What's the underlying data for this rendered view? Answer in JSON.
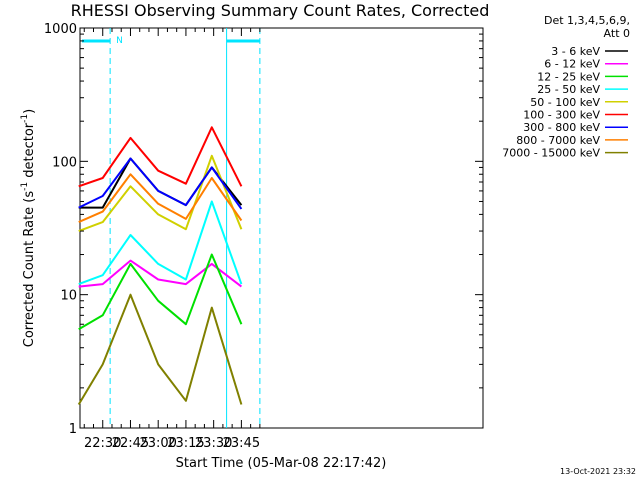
{
  "chart_data": {
    "type": "line",
    "title": "RHESSI Observing Summary Count Rates, Corrected",
    "xlabel": "Start Time (05-Mar-08 22:17:42)",
    "ylabel": "Corrected Count Rate (s⁻¹ detector⁻¹)",
    "ylabel_parts": {
      "main": "Corrected Count Rate (s",
      "sup1": "-1",
      "mid": " detector",
      "sup2": "-1",
      "end": ")"
    },
    "yscale": "log",
    "ylim": [
      1,
      1000
    ],
    "xlim_minutes_after_start": [
      0,
      218
    ],
    "ytick_labels": [
      "1",
      "10",
      "100",
      "1000"
    ],
    "xtick_labels": [
      "22:30",
      "22:45",
      "23:00",
      "23:15",
      "23:30",
      "23:45"
    ],
    "legend_header": [
      "Det 1,3,4,5,6,9,",
      "Att 0"
    ],
    "legend_location": "outside-right",
    "footer": "13-Oct-2021 23:32",
    "flag_label": "N",
    "annotations": {
      "night_intervals": [
        {
          "start": "22:17:42",
          "end": "22:34"
        },
        {
          "start": "23:37",
          "end": "23:55"
        }
      ]
    },
    "series": [
      {
        "name": "3 - 6 keV",
        "color": "#000000",
        "values": [
          {
            "time": "22:17",
            "rate": 45
          },
          {
            "time": "22:30",
            "rate": 45
          },
          {
            "time": "22:45",
            "rate": 105
          },
          {
            "time": "23:00",
            "rate": 60
          },
          {
            "time": "23:15",
            "rate": 47
          },
          {
            "time": "23:29",
            "rate": 90
          },
          {
            "time": "23:45",
            "rate": 47
          }
        ]
      },
      {
        "name": "6 - 12 keV",
        "color": "#ff00ff",
        "values": [
          {
            "time": "22:17",
            "rate": 11.5
          },
          {
            "time": "22:30",
            "rate": 12
          },
          {
            "time": "22:45",
            "rate": 18
          },
          {
            "time": "23:00",
            "rate": 13
          },
          {
            "time": "23:15",
            "rate": 12
          },
          {
            "time": "23:29",
            "rate": 17
          },
          {
            "time": "23:45",
            "rate": 11.5
          }
        ]
      },
      {
        "name": "12 - 25 keV",
        "color": "#00e000",
        "values": [
          {
            "time": "22:17",
            "rate": 5.5
          },
          {
            "time": "22:30",
            "rate": 7
          },
          {
            "time": "22:45",
            "rate": 17
          },
          {
            "time": "23:00",
            "rate": 9
          },
          {
            "time": "23:15",
            "rate": 6
          },
          {
            "time": "23:29",
            "rate": 20
          },
          {
            "time": "23:45",
            "rate": 6
          }
        ]
      },
      {
        "name": "25 - 50 keV",
        "color": "#00ffff",
        "values": [
          {
            "time": "22:17",
            "rate": 12
          },
          {
            "time": "22:30",
            "rate": 14
          },
          {
            "time": "22:45",
            "rate": 28
          },
          {
            "time": "23:00",
            "rate": 17
          },
          {
            "time": "23:15",
            "rate": 13
          },
          {
            "time": "23:29",
            "rate": 50
          },
          {
            "time": "23:45",
            "rate": 12
          }
        ]
      },
      {
        "name": "50 - 100 keV",
        "color": "#d0d000",
        "values": [
          {
            "time": "22:17",
            "rate": 30
          },
          {
            "time": "22:30",
            "rate": 35
          },
          {
            "time": "22:45",
            "rate": 65
          },
          {
            "time": "23:00",
            "rate": 40
          },
          {
            "time": "23:15",
            "rate": 31
          },
          {
            "time": "23:29",
            "rate": 110
          },
          {
            "time": "23:45",
            "rate": 31
          }
        ]
      },
      {
        "name": "100 - 300 keV",
        "color": "#ff0000",
        "values": [
          {
            "time": "22:17",
            "rate": 65
          },
          {
            "time": "22:30",
            "rate": 75
          },
          {
            "time": "22:45",
            "rate": 150
          },
          {
            "time": "23:00",
            "rate": 85
          },
          {
            "time": "23:15",
            "rate": 68
          },
          {
            "time": "23:29",
            "rate": 180
          },
          {
            "time": "23:45",
            "rate": 65
          }
        ]
      },
      {
        "name": "300 - 800 keV",
        "color": "#0000ff",
        "values": [
          {
            "time": "22:17",
            "rate": 45
          },
          {
            "time": "22:30",
            "rate": 55
          },
          {
            "time": "22:45",
            "rate": 105
          },
          {
            "time": "23:00",
            "rate": 60
          },
          {
            "time": "23:15",
            "rate": 47
          },
          {
            "time": "23:29",
            "rate": 90
          },
          {
            "time": "23:45",
            "rate": 44
          }
        ]
      },
      {
        "name": "800 - 7000 keV",
        "color": "#ff7f00",
        "values": [
          {
            "time": "22:17",
            "rate": 35
          },
          {
            "time": "22:30",
            "rate": 42
          },
          {
            "time": "22:45",
            "rate": 80
          },
          {
            "time": "23:00",
            "rate": 48
          },
          {
            "time": "23:15",
            "rate": 37
          },
          {
            "time": "23:29",
            "rate": 75
          },
          {
            "time": "23:45",
            "rate": 36
          }
        ]
      },
      {
        "name": "7000 - 15000 keV",
        "color": "#808000",
        "values": [
          {
            "time": "22:17",
            "rate": 1.5
          },
          {
            "time": "22:30",
            "rate": 3
          },
          {
            "time": "22:45",
            "rate": 10
          },
          {
            "time": "23:00",
            "rate": 3
          },
          {
            "time": "23:15",
            "rate": 1.6
          },
          {
            "time": "23:29",
            "rate": 8
          },
          {
            "time": "23:45",
            "rate": 1.5
          }
        ]
      }
    ],
    "accent_color": "#00e5ff",
    "grid": false
  }
}
